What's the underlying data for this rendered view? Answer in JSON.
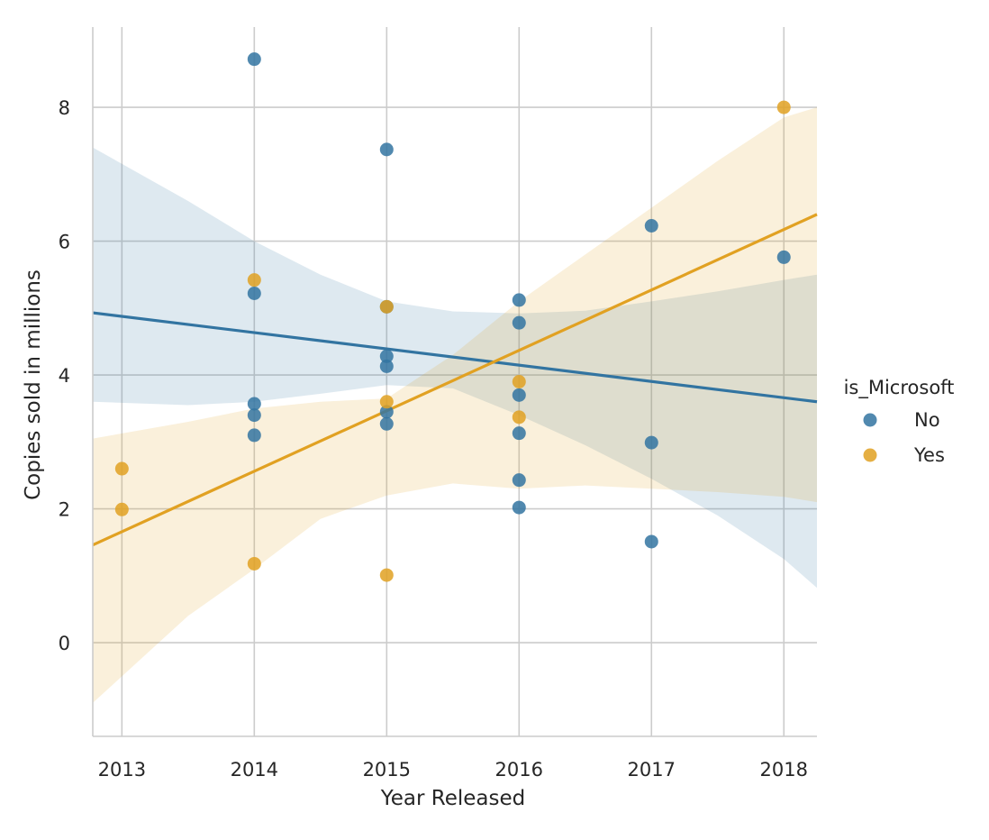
{
  "chart_data": {
    "type": "scatter",
    "xlabel": "Year Released",
    "ylabel": "Copies sold in millions",
    "xlim": [
      2012.78,
      2018.25
    ],
    "ylim": [
      -1.4,
      9.2
    ],
    "xticks": [
      2013,
      2014,
      2015,
      2016,
      2017,
      2018
    ],
    "yticks": [
      0,
      2,
      4,
      6,
      8
    ],
    "grid": true,
    "legend": {
      "title": "is_Microsoft",
      "placement": "right"
    },
    "series": [
      {
        "name": "No",
        "color": "#3274a1",
        "points": [
          [
            2014,
            8.72
          ],
          [
            2014,
            5.22
          ],
          [
            2014,
            3.57
          ],
          [
            2014,
            3.4
          ],
          [
            2014,
            3.1
          ],
          [
            2015,
            7.37
          ],
          [
            2015,
            5.02
          ],
          [
            2015,
            4.28
          ],
          [
            2015,
            4.13
          ],
          [
            2015,
            3.45
          ],
          [
            2015,
            3.27
          ],
          [
            2016,
            5.12
          ],
          [
            2016,
            4.78
          ],
          [
            2016,
            3.7
          ],
          [
            2016,
            3.13
          ],
          [
            2016,
            2.43
          ],
          [
            2016,
            2.02
          ],
          [
            2017,
            6.23
          ],
          [
            2017,
            2.99
          ],
          [
            2017,
            1.51
          ],
          [
            2018,
            5.76
          ]
        ],
        "fit": {
          "x": [
            2012.78,
            2018.25
          ],
          "y": [
            4.93,
            3.6
          ]
        },
        "ci": {
          "x": [
            2012.78,
            2013.5,
            2014,
            2014.5,
            2015,
            2015.5,
            2016,
            2016.5,
            2017,
            2017.5,
            2018,
            2018.25
          ],
          "upper": [
            7.4,
            6.6,
            6.0,
            5.5,
            5.1,
            4.95,
            4.92,
            4.96,
            5.1,
            5.25,
            5.42,
            5.5
          ],
          "lower": [
            3.6,
            3.55,
            3.6,
            3.72,
            3.85,
            3.8,
            3.4,
            2.95,
            2.45,
            1.9,
            1.25,
            0.82
          ]
        }
      },
      {
        "name": "Yes",
        "color": "#e1a122",
        "points": [
          [
            2013,
            2.6
          ],
          [
            2013,
            1.99
          ],
          [
            2014,
            5.42
          ],
          [
            2014,
            1.18
          ],
          [
            2015,
            5.02
          ],
          [
            2015,
            3.6
          ],
          [
            2015,
            1.01
          ],
          [
            2016,
            3.9
          ],
          [
            2016,
            3.37
          ],
          [
            2018,
            8.0
          ]
        ],
        "fit": {
          "x": [
            2012.78,
            2018.25
          ],
          "y": [
            1.46,
            6.4
          ]
        },
        "ci": {
          "x": [
            2012.78,
            2013.5,
            2014,
            2014.5,
            2015,
            2015.5,
            2016,
            2016.5,
            2017,
            2017.5,
            2018,
            2018.25
          ],
          "upper": [
            3.05,
            3.3,
            3.5,
            3.6,
            3.65,
            4.3,
            5.1,
            5.8,
            6.5,
            7.2,
            7.85,
            8.0
          ],
          "lower": [
            -0.9,
            0.4,
            1.1,
            1.85,
            2.2,
            2.38,
            2.3,
            2.35,
            2.3,
            2.25,
            2.18,
            2.1
          ]
        }
      }
    ]
  }
}
